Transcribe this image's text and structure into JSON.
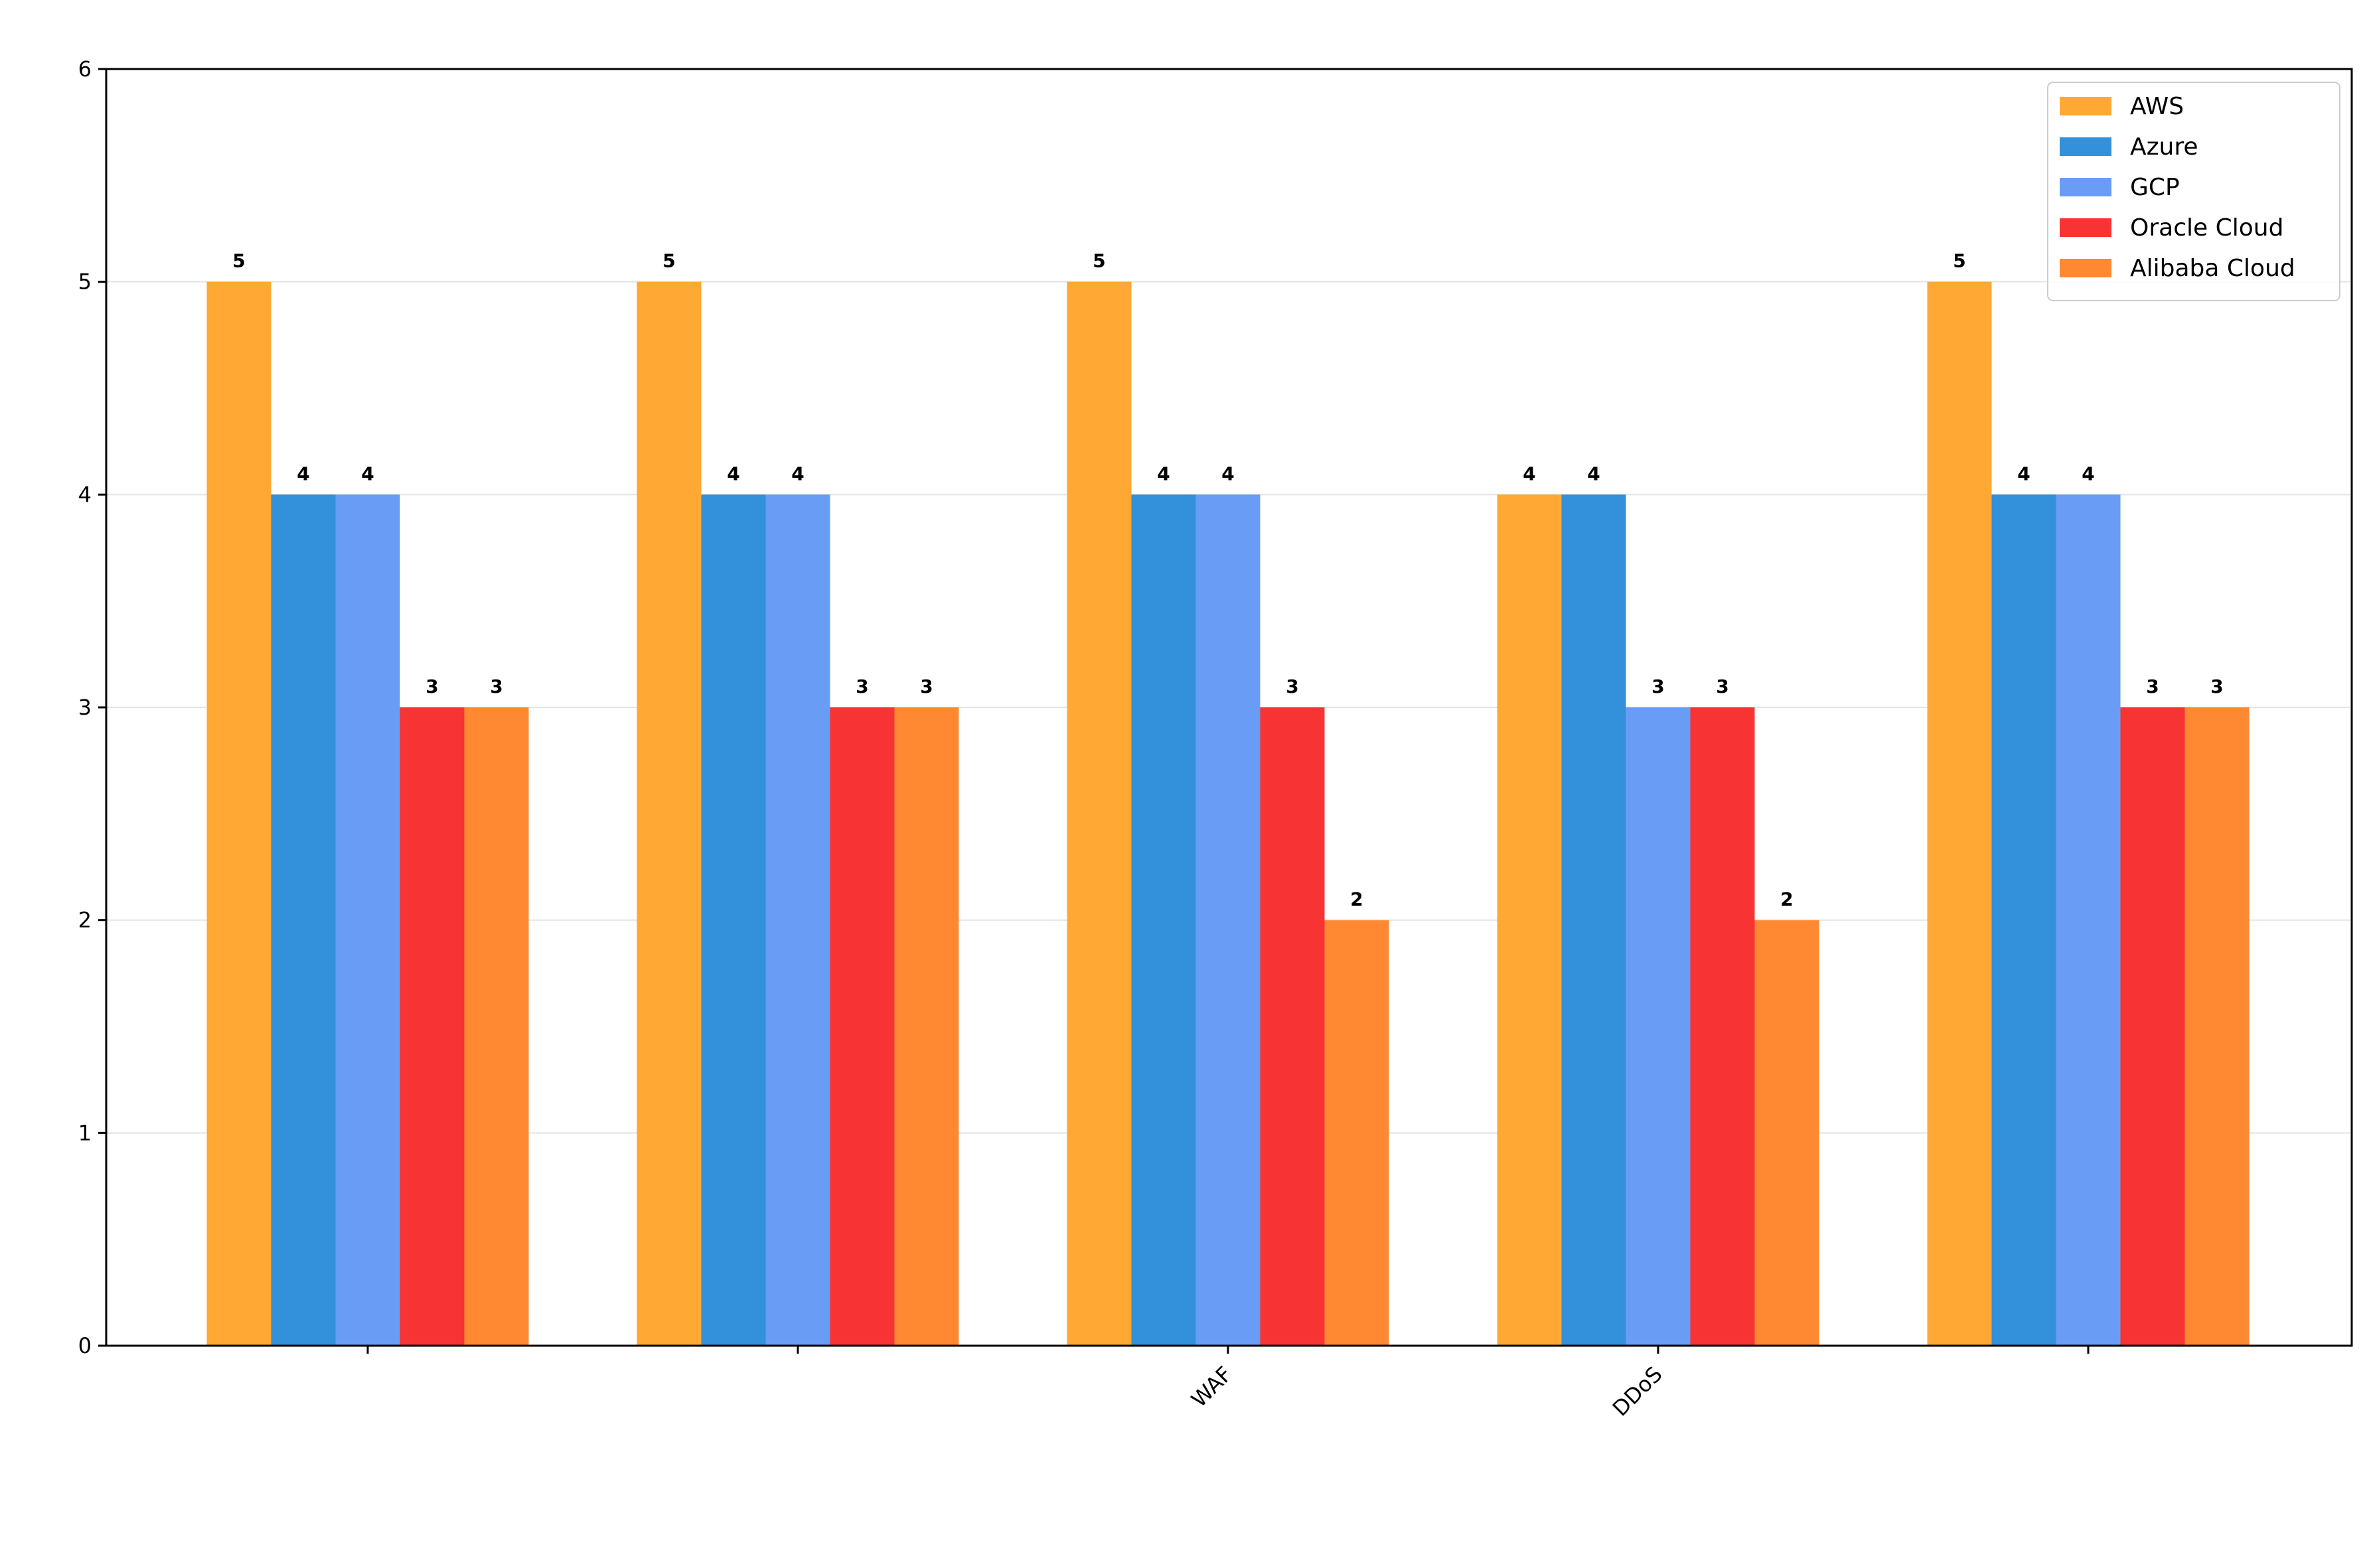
{
  "chart_data": {
    "type": "bar",
    "title": "",
    "xlabel": "",
    "ylabel": "",
    "categories": [
      "",
      "",
      "WAF",
      "DDoS",
      ""
    ],
    "ylim": [
      0,
      6
    ],
    "yticks": [
      0,
      1,
      2,
      3,
      4,
      5,
      6
    ],
    "grid": "y",
    "legend_position": "top-right",
    "series": [
      {
        "name": "AWS",
        "color": "#FFA833",
        "values": [
          5,
          5,
          5,
          4,
          5
        ]
      },
      {
        "name": "Azure",
        "color": "#3390DB",
        "values": [
          4,
          4,
          4,
          4,
          4
        ]
      },
      {
        "name": "GCP",
        "color": "#699DF5",
        "values": [
          4,
          4,
          4,
          3,
          4
        ]
      },
      {
        "name": "Oracle Cloud",
        "color": "#F83333",
        "values": [
          3,
          3,
          3,
          3,
          3
        ]
      },
      {
        "name": "Alibaba Cloud",
        "color": "#FF8833",
        "values": [
          3,
          3,
          2,
          2,
          3
        ]
      }
    ]
  }
}
